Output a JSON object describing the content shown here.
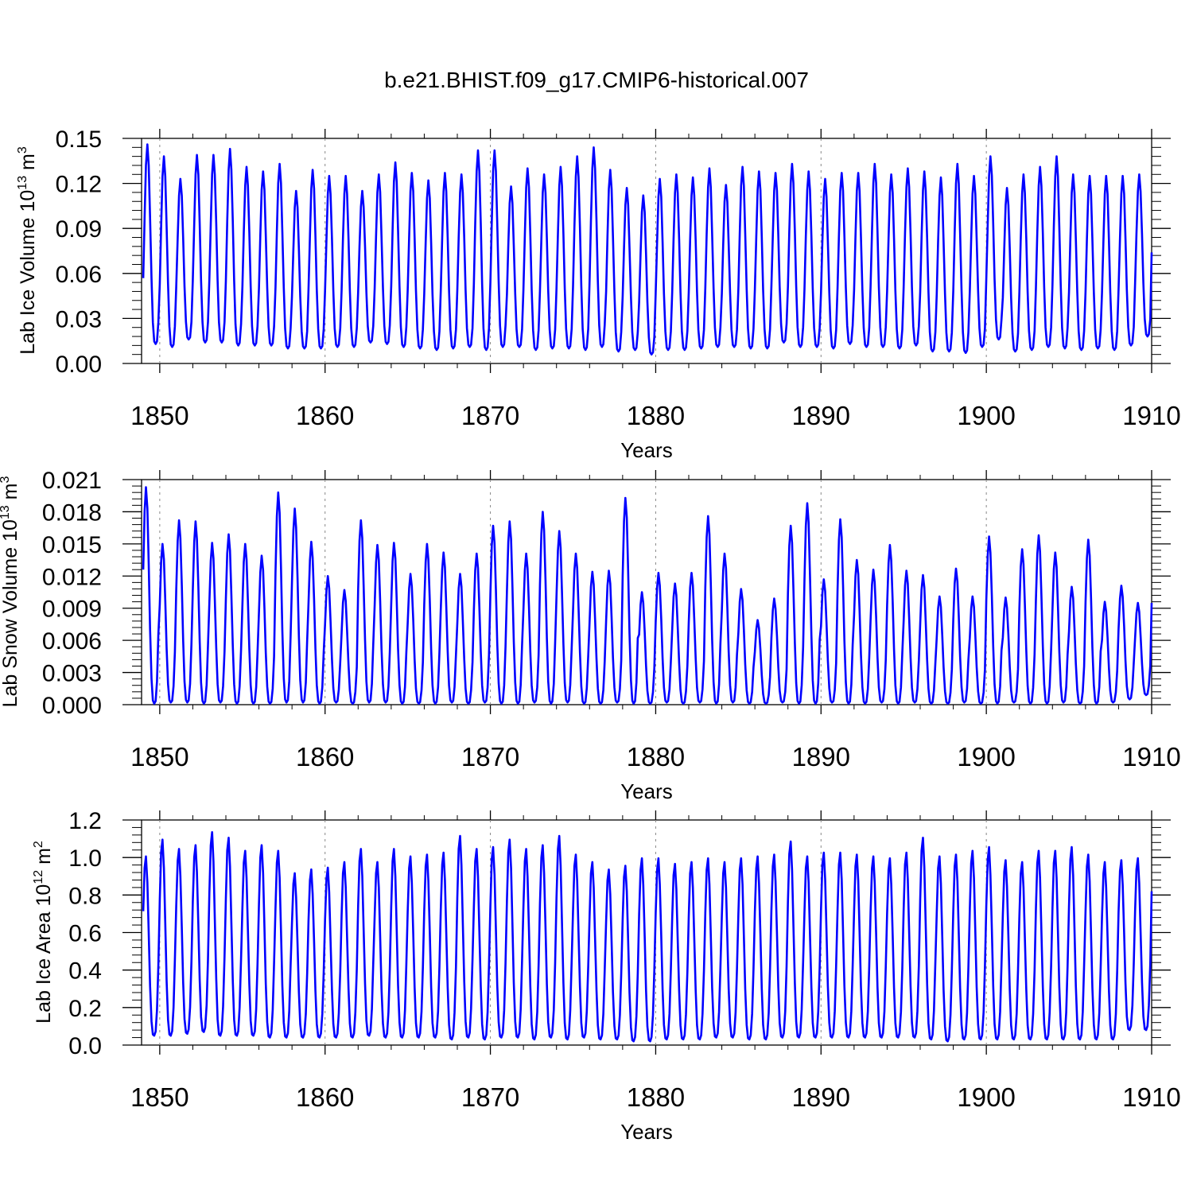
{
  "title": "b.e21.BHIST.f09_g17.CMIP6-historical.007",
  "colors": {
    "series": "#0000ff",
    "axis": "#000000",
    "grid": "#888888"
  },
  "chart_data": [
    {
      "type": "line",
      "ylabel_main": "Lab Ice Volume 10",
      "ylabel_exp": "13",
      "ylabel_unit": " m",
      "ylabel_unit_exp": "3",
      "xlabel": "Years",
      "xlim": [
        1848.9,
        1910
      ],
      "ylim": [
        0.0,
        0.15
      ],
      "xticks": [
        1850,
        1860,
        1870,
        1880,
        1890,
        1900,
        1910
      ],
      "yticks": [
        "0.00",
        "0.03",
        "0.06",
        "0.09",
        "0.12",
        "0.15"
      ],
      "yticks_values": [
        0.0,
        0.03,
        0.06,
        0.09,
        0.12,
        0.15
      ],
      "grid": "dashed vertical at decades",
      "series": [
        {
          "name": "Lab Ice Volume",
          "start_year": 1849,
          "months_per_year": 12,
          "phase": 0.25,
          "peaks": [
            0.146,
            0.138,
            0.123,
            0.139,
            0.139,
            0.143,
            0.131,
            0.128,
            0.133,
            0.115,
            0.129,
            0.125,
            0.125,
            0.115,
            0.126,
            0.134,
            0.127,
            0.122,
            0.127,
            0.126,
            0.142,
            0.142,
            0.118,
            0.13,
            0.126,
            0.131,
            0.138,
            0.144,
            0.129,
            0.117,
            0.112,
            0.123,
            0.126,
            0.124,
            0.13,
            0.119,
            0.131,
            0.128,
            0.127,
            0.133,
            0.128,
            0.123,
            0.127,
            0.127,
            0.133,
            0.126,
            0.13,
            0.128,
            0.124,
            0.133,
            0.125,
            0.138,
            0.117,
            0.126,
            0.131,
            0.138,
            0.126,
            0.125,
            0.125,
            0.125,
            0.126
          ],
          "troughs": [
            0.013,
            0.011,
            0.016,
            0.014,
            0.014,
            0.012,
            0.012,
            0.012,
            0.01,
            0.01,
            0.01,
            0.011,
            0.011,
            0.014,
            0.013,
            0.011,
            0.01,
            0.009,
            0.01,
            0.011,
            0.009,
            0.011,
            0.011,
            0.009,
            0.01,
            0.01,
            0.009,
            0.011,
            0.008,
            0.009,
            0.006,
            0.009,
            0.009,
            0.01,
            0.011,
            0.011,
            0.01,
            0.01,
            0.014,
            0.011,
            0.011,
            0.01,
            0.013,
            0.011,
            0.011,
            0.01,
            0.012,
            0.008,
            0.008,
            0.007,
            0.011,
            0.016,
            0.008,
            0.009,
            0.011,
            0.01,
            0.009,
            0.01,
            0.009,
            0.012,
            0.018
          ],
          "end_value": 0.074
        }
      ]
    },
    {
      "type": "line",
      "ylabel_main": "Lab Snow Volume 10",
      "ylabel_exp": "13",
      "ylabel_unit": " m",
      "ylabel_unit_exp": "3",
      "xlabel": "Years",
      "xlim": [
        1848.9,
        1910
      ],
      "ylim": [
        0.0,
        0.021
      ],
      "xticks": [
        1850,
        1860,
        1870,
        1880,
        1890,
        1900,
        1910
      ],
      "yticks": [
        "0.000",
        "0.003",
        "0.006",
        "0.009",
        "0.012",
        "0.015",
        "0.018",
        "0.021"
      ],
      "yticks_values": [
        0.0,
        0.003,
        0.006,
        0.009,
        0.012,
        0.015,
        0.018,
        0.021
      ],
      "grid": "dashed vertical at decades",
      "series": [
        {
          "name": "Lab Snow Volume",
          "start_year": 1849,
          "months_per_year": 12,
          "phase": 0.17,
          "peaks": [
            0.0203,
            0.015,
            0.0172,
            0.0171,
            0.0151,
            0.0159,
            0.015,
            0.0139,
            0.0198,
            0.0183,
            0.0152,
            0.012,
            0.0107,
            0.0172,
            0.0149,
            0.0151,
            0.0122,
            0.015,
            0.0142,
            0.0122,
            0.0141,
            0.0167,
            0.0171,
            0.0141,
            0.018,
            0.0162,
            0.0141,
            0.0124,
            0.0125,
            0.0193,
            0.0105,
            0.0123,
            0.0113,
            0.0123,
            0.0176,
            0.0141,
            0.0108,
            0.0079,
            0.0099,
            0.0167,
            0.0188,
            0.0117,
            0.0173,
            0.0135,
            0.0126,
            0.0149,
            0.0125,
            0.0121,
            0.0101,
            0.0127,
            0.0101,
            0.0157,
            0.01,
            0.0145,
            0.0158,
            0.0142,
            0.011,
            0.0154,
            0.0096,
            0.0111,
            0.0095
          ],
          "troughs": [
            0.0001,
            0.0002,
            0.0002,
            0.0001,
            0.0002,
            0.0001,
            0.0001,
            0.0001,
            0.0002,
            0.0002,
            0.0001,
            0.0002,
            0.0001,
            0.0002,
            0.0002,
            0.0001,
            0.0001,
            0.0001,
            0.0002,
            0.0001,
            0.0002,
            0.0001,
            0.0001,
            0.0002,
            0.0001,
            0.0002,
            0.0001,
            0.0001,
            0.0002,
            0.0001,
            0.0001,
            0.0002,
            0.0001,
            0.0002,
            0.0001,
            0.0002,
            0.0001,
            0.0001,
            0.0002,
            0.0001,
            0.0001,
            0.0002,
            0.0001,
            0.0001,
            0.0002,
            0.0001,
            0.0002,
            0.0001,
            0.0001,
            0.0002,
            0.0001,
            0.0001,
            0.0002,
            0.0001,
            0.0001,
            0.0002,
            0.0001,
            0.0001,
            0.0002,
            0.0005,
            0.0009
          ],
          "end_value": 0.0095
        }
      ]
    },
    {
      "type": "line",
      "ylabel_main": "Lab Ice Area 10",
      "ylabel_exp": "12",
      "ylabel_unit": " m",
      "ylabel_unit_exp": "2",
      "xlabel": "Years",
      "xlim": [
        1848.9,
        1910
      ],
      "ylim": [
        0.0,
        1.2
      ],
      "xticks": [
        1850,
        1860,
        1870,
        1880,
        1890,
        1900,
        1910
      ],
      "yticks": [
        "0.0",
        "0.2",
        "0.4",
        "0.6",
        "0.8",
        "1.0",
        "1.2"
      ],
      "yticks_values": [
        0.0,
        0.2,
        0.4,
        0.6,
        0.8,
        1.0,
        1.2
      ],
      "grid": "dashed vertical at decades",
      "series": [
        {
          "name": "Lab Ice Area",
          "start_year": 1849,
          "months_per_year": 12,
          "phase": 0.15,
          "peaks": [
            1.01,
            1.1,
            1.05,
            1.07,
            1.14,
            1.11,
            1.04,
            1.07,
            1.04,
            0.92,
            0.94,
            0.95,
            0.98,
            1.05,
            0.98,
            1.05,
            1.01,
            1.02,
            1.03,
            1.12,
            1.05,
            1.06,
            1.1,
            1.05,
            1.07,
            1.12,
            1.02,
            0.98,
            0.94,
            0.96,
            1.0,
            1.0,
            0.97,
            0.98,
            1.0,
            0.98,
            1.0,
            1.01,
            1.02,
            1.09,
            1.01,
            1.03,
            1.03,
            1.02,
            1.01,
            1.0,
            1.03,
            1.11,
            1.01,
            1.02,
            1.04,
            1.06,
            0.99,
            0.98,
            1.04,
            1.04,
            1.06,
            1.02,
            0.98,
            0.99,
            1.0
          ],
          "troughs": [
            0.05,
            0.05,
            0.06,
            0.07,
            0.05,
            0.05,
            0.05,
            0.04,
            0.04,
            0.04,
            0.04,
            0.04,
            0.04,
            0.05,
            0.04,
            0.04,
            0.04,
            0.04,
            0.03,
            0.04,
            0.03,
            0.04,
            0.04,
            0.03,
            0.04,
            0.03,
            0.04,
            0.03,
            0.03,
            0.02,
            0.02,
            0.03,
            0.03,
            0.03,
            0.04,
            0.04,
            0.03,
            0.03,
            0.04,
            0.04,
            0.04,
            0.04,
            0.04,
            0.04,
            0.04,
            0.04,
            0.04,
            0.03,
            0.02,
            0.03,
            0.03,
            0.03,
            0.03,
            0.03,
            0.03,
            0.03,
            0.03,
            0.03,
            0.03,
            0.08,
            0.08
          ],
          "end_value": 0.82
        }
      ]
    }
  ]
}
